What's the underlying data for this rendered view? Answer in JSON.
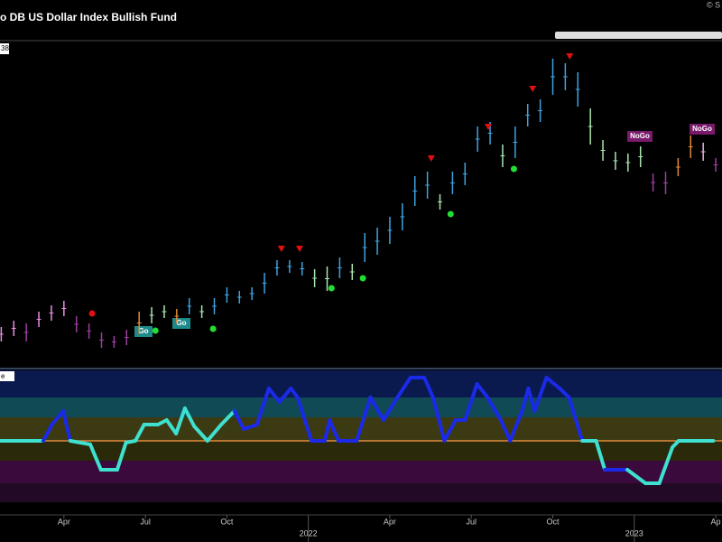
{
  "chart_data": [
    {
      "type": "range_bar",
      "title": "o DB US Dollar Index Bullish Fund",
      "copyright": "© S",
      "corner_label": "38",
      "xlim": [
        2.8,
        118
      ],
      "ylim": [
        0,
        363
      ],
      "x": [
        3,
        5,
        7,
        9,
        11,
        13,
        15,
        17,
        19,
        21,
        23,
        25,
        27,
        29,
        31,
        33,
        35,
        37,
        39,
        41,
        43,
        45,
        47,
        49,
        51,
        53,
        55,
        57,
        59,
        61,
        63,
        65,
        67,
        69,
        71,
        73,
        75,
        77,
        79,
        81,
        83,
        85,
        87,
        89,
        91,
        93,
        95,
        97,
        99,
        101,
        103,
        105,
        107,
        109,
        111,
        113,
        115,
        117
      ],
      "high": [
        46,
        53,
        50,
        63,
        70,
        75,
        58,
        50,
        40,
        36,
        43,
        63,
        68,
        70,
        66,
        78,
        70,
        78,
        90,
        86,
        90,
        106,
        120,
        120,
        118,
        110,
        113,
        123,
        116,
        150,
        156,
        168,
        183,
        213,
        218,
        193,
        218,
        228,
        268,
        273,
        248,
        268,
        293,
        298,
        343,
        338,
        328,
        288,
        253,
        240,
        238,
        246,
        216,
        218,
        233,
        258,
        250,
        233
      ],
      "low": [
        30,
        36,
        30,
        46,
        53,
        58,
        40,
        33,
        23,
        23,
        26,
        38,
        50,
        56,
        50,
        60,
        56,
        60,
        73,
        72,
        76,
        83,
        103,
        106,
        103,
        90,
        86,
        100,
        98,
        118,
        126,
        138,
        153,
        180,
        188,
        176,
        193,
        203,
        240,
        248,
        223,
        233,
        268,
        273,
        303,
        308,
        290,
        248,
        230,
        220,
        218,
        223,
        196,
        193,
        213,
        233,
        230,
        218
      ],
      "colors": [
        "#e58fe0",
        "#e58fe0",
        "#9b3fa0",
        "#e58fe0",
        "#e58fe0",
        "#e58fe0",
        "#9b3fa0",
        "#9b3fa0",
        "#9b3fa0",
        "#9b3fa0",
        "#9b3fa0",
        "#e08a3a",
        "#a8e6b0",
        "#a8e6b0",
        "#e08a3a",
        "#3fa3e0",
        "#a8e6b0",
        "#3fa3e0",
        "#3fa3e0",
        "#3fa3e0",
        "#3fa3e0",
        "#3fa3e0",
        "#3fa3e0",
        "#3fa3e0",
        "#3fa3e0",
        "#a8e6b0",
        "#a8e6b0",
        "#3fa3e0",
        "#a8e6b0",
        "#3fa3e0",
        "#3fa3e0",
        "#3fa3e0",
        "#3fa3e0",
        "#3fa3e0",
        "#3fa3e0",
        "#a8e6b0",
        "#3fa3e0",
        "#3fa3e0",
        "#3fa3e0",
        "#3fa3e0",
        "#a8e6b0",
        "#3fa3e0",
        "#3fa3e0",
        "#3fa3e0",
        "#3fa3e0",
        "#3fa3e0",
        "#3fa3e0",
        "#a8e6b0",
        "#a8e6b0",
        "#a8e6b0",
        "#a8e6b0",
        "#a8e6b0",
        "#9b3fa0",
        "#9b3fa0",
        "#e08a3a",
        "#e08a3a",
        "#e5b0d8",
        "#9b3fa0"
      ],
      "down_signals": {
        "color": "#e01010",
        "x": [
          47.7,
          50.6,
          71.6,
          80.7,
          87.8,
          93.7
        ],
        "y": [
          133,
          133,
          233,
          268,
          310,
          346
        ]
      },
      "dot_signals": {
        "x": [
          17.5,
          27.6,
          36.8,
          55.7,
          60.7,
          74.7,
          84.8
        ],
        "y": [
          61,
          42,
          44,
          89,
          100,
          171,
          221
        ],
        "colors": [
          "#e01010",
          "#22dd33",
          "#22dd33",
          "#22dd33",
          "#22dd33",
          "#22dd33",
          "#22dd33"
        ]
      },
      "annotations": [
        "Go",
        "Go",
        "NoGo",
        "NoGo"
      ]
    },
    {
      "type": "line",
      "panel_label": "e",
      "xlim": [
        2.8,
        118
      ],
      "ylim": [
        -82,
        80
      ],
      "xticks": [
        {
          "value": 13,
          "label": "Apr"
        },
        {
          "value": 26,
          "label": "Jul"
        },
        {
          "value": 39,
          "label": "Oct"
        },
        {
          "value": 52,
          "label": "2022"
        },
        {
          "value": 65,
          "label": "Apr"
        },
        {
          "value": 78,
          "label": "Jul"
        },
        {
          "value": 91,
          "label": "Oct"
        },
        {
          "value": 104,
          "label": "2023"
        },
        {
          "value": 117,
          "label": "Ap"
        }
      ],
      "x": [
        2.8,
        8.5,
        9.7,
        11.1,
        12.9,
        14.0,
        17.2,
        18.9,
        21.5,
        22.9,
        24.4,
        25.8,
        28.0,
        29.4,
        30.9,
        32.3,
        33.8,
        35.9,
        38.1,
        40.2,
        41.7,
        43.8,
        45.7,
        47.4,
        49.2,
        50.3,
        52.5,
        54.6,
        55.4,
        56.8,
        59.7,
        61.9,
        64.0,
        66.2,
        68.3,
        70.5,
        71.9,
        73.7,
        75.5,
        77.0,
        78.9,
        80.6,
        82.7,
        84.2,
        86.1,
        87.1,
        88.1,
        90.0,
        92.1,
        93.6,
        95.7,
        97.9,
        99.3,
        102.9,
        105.8,
        108.0,
        110.1,
        111.1,
        116.6
      ],
      "values": [
        0,
        0,
        0,
        18,
        33,
        0,
        -4,
        -32,
        -32,
        -2,
        0,
        18,
        18,
        23,
        8,
        36,
        16,
        0,
        18,
        33,
        13,
        18,
        58,
        43,
        58,
        48,
        0,
        0,
        23,
        0,
        0,
        48,
        23,
        48,
        70,
        70,
        48,
        0,
        23,
        23,
        63,
        48,
        23,
        0,
        33,
        58,
        33,
        70,
        58,
        48,
        0,
        0,
        -32,
        -32,
        -47,
        -47,
        -7,
        0,
        0
      ],
      "colors": [
        "#3ee0d0",
        "#3ee0d0",
        "#1a2ae8",
        "#1a2ae8",
        "#1a2ae8",
        "#3ee0d0",
        "#3ee0d0",
        "#3ee0d0",
        "#3ee0d0",
        "#3ee0d0",
        "#3ee0d0",
        "#3ee0d0",
        "#3ee0d0",
        "#3ee0d0",
        "#3ee0d0",
        "#3ee0d0",
        "#3ee0d0",
        "#3ee0d0",
        "#3ee0d0",
        "#1a2ae8",
        "#1a2ae8",
        "#1a2ae8",
        "#1a2ae8",
        "#1a2ae8",
        "#1a2ae8",
        "#1a2ae8",
        "#1a2ae8",
        "#1a2ae8",
        "#1a2ae8",
        "#1a2ae8",
        "#1a2ae8",
        "#1a2ae8",
        "#1a2ae8",
        "#1a2ae8",
        "#1a2ae8",
        "#1a2ae8",
        "#1a2ae8",
        "#1a2ae8",
        "#1a2ae8",
        "#1a2ae8",
        "#1a2ae8",
        "#1a2ae8",
        "#1a2ae8",
        "#1a2ae8",
        "#1a2ae8",
        "#1a2ae8",
        "#1a2ae8",
        "#1a2ae8",
        "#1a2ae8",
        "#1a2ae8",
        "#3ee0d0",
        "#3ee0d0",
        "#1a2ae8",
        "#3ee0d0",
        "#3ee0d0",
        "#3ee0d0",
        "#3ee0d0",
        "#3ee0d0",
        "#3ee0d0"
      ],
      "zero_line_color": "#e08a3a"
    }
  ]
}
